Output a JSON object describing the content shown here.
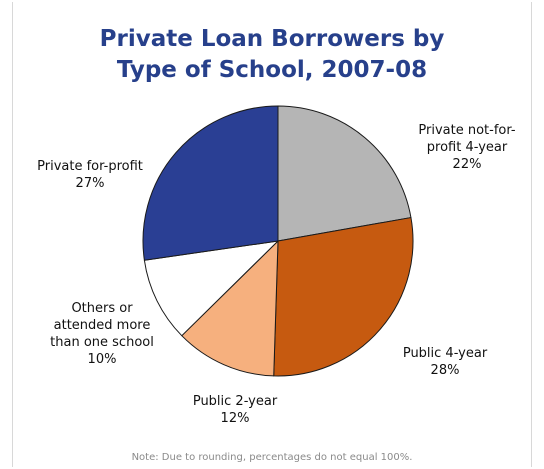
{
  "chart_data": {
    "type": "pie",
    "title_lines": [
      "Private Loan Borrowers by",
      "Type of School, 2007-08"
    ],
    "slices": [
      {
        "name": "Private not-for-profit 4-year",
        "label_lines": [
          "Private not-for-",
          "profit 4-year"
        ],
        "value": 22,
        "value_label": "22%",
        "color": "#b5b5b5"
      },
      {
        "name": "Public 4-year",
        "label_lines": [
          "Public 4-year"
        ],
        "value": 28,
        "value_label": "28%",
        "color": "#c65a10"
      },
      {
        "name": "Public 2-year",
        "label_lines": [
          "Public 2-year"
        ],
        "value": 12,
        "value_label": "12%",
        "color": "#f6b07e"
      },
      {
        "name": "Others or attended more than one school",
        "label_lines": [
          "Others or",
          "attended more",
          "than one school"
        ],
        "value": 10,
        "value_label": "10%",
        "color": "#ffffff"
      },
      {
        "name": "Private for-profit",
        "label_lines": [
          "Private for-profit"
        ],
        "value": 27,
        "value_label": "27%",
        "color": "#2a3f94"
      }
    ],
    "start_angle_deg": 0,
    "direction": "clockwise",
    "note": "Note: Due to rounding, percentages do not equal 100%."
  }
}
